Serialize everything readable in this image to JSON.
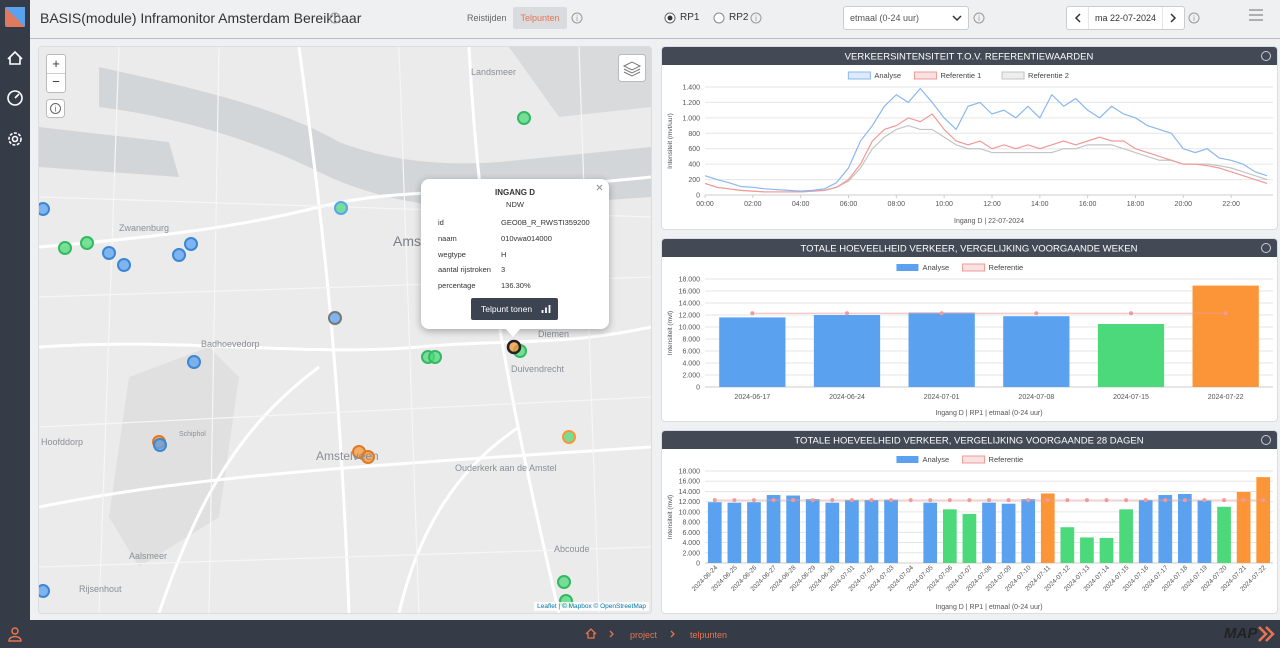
{
  "header": {
    "title": "BASIS(module) Inframonitor Amsterdam Bereikbaar",
    "tabs": [
      "Reistijden",
      "Telpunten"
    ],
    "options": [
      "RP1",
      "RP2"
    ],
    "period": "etmaal (0-24 uur)",
    "date": "ma 22-07-2024"
  },
  "map": {
    "controls": [
      "+",
      "−"
    ],
    "places": [
      "Landsmeer",
      "Zwanenburg",
      "Badhoevedorp",
      "Hoofddorp",
      "Amsterdam",
      "Diemen",
      "Duivendrecht",
      "Amstelveen",
      "Ouderkerk aan de Amstel",
      "Abcoude",
      "Aalsmeer",
      "Rijsenhout",
      "Schiphol"
    ],
    "popup": {
      "title": "INGANG D",
      "source": "NDW",
      "rows": [
        [
          "id",
          "GEO0B_R_RWSTI359200"
        ],
        [
          "naam",
          "010vwa014000"
        ],
        [
          "wegtype",
          "H"
        ],
        [
          "aantal rijstroken",
          "3"
        ],
        [
          "percentage",
          "136.30%"
        ]
      ],
      "button": "Telpunt tonen"
    },
    "attribution": "Leaflet | © Mapbox © OpenStreetMap"
  },
  "chart_data": [
    {
      "type": "line",
      "title": "VERKEERSINTENSITEIT T.O.V. REFERENTIEWAARDEN",
      "y_label": "Intensiteit (mvt/uur)",
      "x_label": "Ingang D | 22-07-2024",
      "x": [
        0,
        0.5,
        1,
        1.5,
        2,
        2.5,
        3,
        3.5,
        4,
        4.5,
        5,
        5.5,
        6,
        6.5,
        7,
        7.5,
        8,
        8.5,
        9,
        9.5,
        10,
        10.5,
        11,
        11.5,
        12,
        12.5,
        13,
        13.5,
        14,
        14.5,
        15,
        15.5,
        16,
        16.5,
        17,
        17.5,
        18,
        18.5,
        19,
        19.5,
        20,
        20.5,
        21,
        21.5,
        22,
        22.5,
        23,
        23.5
      ],
      "series": [
        {
          "name": "Analyse",
          "color": "#8ab8f0",
          "values": [
            250,
            200,
            160,
            110,
            100,
            80,
            70,
            60,
            50,
            60,
            80,
            160,
            350,
            700,
            900,
            1150,
            1300,
            1200,
            1380,
            1200,
            1000,
            850,
            1150,
            1200,
            1050,
            1100,
            1000,
            1150,
            1000,
            1300,
            1150,
            1250,
            1100,
            1000,
            1150,
            1050,
            1000,
            900,
            850,
            800,
            600,
            550,
            600,
            480,
            450,
            400,
            300,
            250
          ]
        },
        {
          "name": "Referentie 1",
          "color": "#f09a9a",
          "values": [
            150,
            100,
            80,
            60,
            50,
            40,
            40,
            40,
            40,
            50,
            60,
            100,
            200,
            400,
            700,
            850,
            900,
            1000,
            950,
            1050,
            850,
            700,
            650,
            700,
            600,
            650,
            600,
            650,
            600,
            650,
            700,
            650,
            700,
            750,
            700,
            700,
            600,
            550,
            500,
            450,
            400,
            400,
            380,
            350,
            300,
            250,
            200,
            150
          ]
        },
        {
          "name": "Referentie 2",
          "color": "#c4c4c4",
          "values": [
            150,
            100,
            80,
            60,
            50,
            40,
            40,
            40,
            40,
            50,
            60,
            100,
            180,
            350,
            600,
            750,
            850,
            900,
            850,
            850,
            750,
            650,
            600,
            600,
            550,
            550,
            550,
            550,
            550,
            550,
            600,
            600,
            650,
            650,
            650,
            600,
            550,
            500,
            450,
            450,
            400,
            400,
            400,
            380,
            350,
            300,
            250,
            200
          ]
        }
      ],
      "xlim": [
        0,
        23.75
      ],
      "xticks": [
        {
          "value": 0,
          "label": "00:00"
        },
        {
          "value": 2,
          "label": "02:00"
        },
        {
          "value": 4,
          "label": "04:00"
        },
        {
          "value": 6,
          "label": "06:00"
        },
        {
          "value": 8,
          "label": "08:00"
        },
        {
          "value": 10,
          "label": "10:00"
        },
        {
          "value": 12,
          "label": "12:00"
        },
        {
          "value": 14,
          "label": "14:00"
        },
        {
          "value": 16,
          "label": "16:00"
        },
        {
          "value": 18,
          "label": "18:00"
        },
        {
          "value": 20,
          "label": "20:00"
        },
        {
          "value": 22,
          "label": "22:00"
        }
      ],
      "ylim": [
        0,
        1400
      ],
      "yticks": [
        0,
        200,
        400,
        600,
        800,
        {
          "value": 1000,
          "label": "1.000"
        },
        {
          "value": 1200,
          "label": "1.200"
        },
        {
          "value": 1400,
          "label": "1.400"
        }
      ],
      "grid": true
    },
    {
      "type": "bar",
      "title": "TOTALE HOEVEELHEID VERKEER, VERGELIJKING VOORGAANDE WEKEN",
      "y_label": "Intensiteit (mvt)",
      "x_label": "Ingang D | RP1 | etmaal (0-24 uur)",
      "categories": [
        "2024-06-17",
        "2024-06-24",
        "2024-07-01",
        "2024-07-08",
        "2024-07-15",
        "2024-07-22"
      ],
      "series": [
        {
          "name": "Analyse",
          "color": "#5aa2f0",
          "values": [
            11600,
            12000,
            12400,
            11800,
            10500,
            16900
          ],
          "colors": [
            "#5aa2f0",
            "#5aa2f0",
            "#5aa2f0",
            "#5aa2f0",
            "#4cd97b",
            "#fb9538"
          ]
        },
        {
          "name": "Referentie",
          "color": "#f09a9a",
          "values": [
            12300,
            12300,
            12300,
            12300,
            12300,
            12300
          ]
        }
      ],
      "ylim": [
        0,
        18000
      ],
      "yticks": [
        0,
        {
          "value": 2000,
          "label": "2.000"
        },
        {
          "value": 4000,
          "label": "4.000"
        },
        {
          "value": 6000,
          "label": "6.000"
        },
        {
          "value": 8000,
          "label": "8.000"
        },
        {
          "value": 10000,
          "label": "10.000"
        },
        {
          "value": 12000,
          "label": "12.000"
        },
        {
          "value": 14000,
          "label": "14.000"
        },
        {
          "value": 16000,
          "label": "16.000"
        },
        {
          "value": 18000,
          "label": "18.000"
        }
      ],
      "grid": true
    },
    {
      "type": "bar",
      "title": "TOTALE HOEVEELHEID VERKEER, VERGELIJKING VOORGAANDE 28 DAGEN",
      "y_label": "Intensiteit (mvt)",
      "x_label": "Ingang D | RP1 | etmaal (0-24 uur)",
      "categories": [
        "2024-06-24",
        "2024-06-25",
        "2024-06-26",
        "2024-06-27",
        "2024-06-28",
        "2024-06-29",
        "2024-06-30",
        "2024-07-01",
        "2024-07-02",
        "2024-07-03",
        "2024-07-04",
        "2024-07-05",
        "2024-07-06",
        "2024-07-07",
        "2024-07-08",
        "2024-07-09",
        "2024-07-10",
        "2024-07-11",
        "2024-07-12",
        "2024-07-13",
        "2024-07-14",
        "2024-07-15",
        "2024-07-16",
        "2024-07-17",
        "2024-07-18",
        "2024-07-19",
        "2024-07-20",
        "2024-07-21",
        "2024-07-22"
      ],
      "series": [
        {
          "name": "Analyse",
          "color": "#5aa2f0",
          "values": [
            11900,
            11800,
            11900,
            13300,
            13200,
            12500,
            11800,
            12300,
            12300,
            12400,
            null,
            11800,
            10500,
            9600,
            11800,
            11600,
            12500,
            13600,
            7000,
            5000,
            4900,
            10500,
            12300,
            13300,
            13500,
            12200,
            11000,
            13900,
            16800
          ],
          "colors": [
            "#5aa2f0",
            "#5aa2f0",
            "#5aa2f0",
            "#5aa2f0",
            "#5aa2f0",
            "#5aa2f0",
            "#5aa2f0",
            "#5aa2f0",
            "#5aa2f0",
            "#5aa2f0",
            "#5aa2f0",
            "#5aa2f0",
            "#4cd97b",
            "#4cd97b",
            "#5aa2f0",
            "#5aa2f0",
            "#5aa2f0",
            "#fb9538",
            "#4cd97b",
            "#4cd97b",
            "#4cd97b",
            "#4cd97b",
            "#5aa2f0",
            "#5aa2f0",
            "#5aa2f0",
            "#5aa2f0",
            "#4cd97b",
            "#fb9538",
            "#fb9538"
          ]
        },
        {
          "name": "Referentie",
          "color": "#f09a9a",
          "values": [
            12300,
            12300,
            12300,
            12300,
            12300,
            12300,
            12300,
            12300,
            12300,
            12300,
            12300,
            12300,
            12300,
            12300,
            12300,
            12300,
            12300,
            12300,
            12300,
            12300,
            12300,
            12300,
            12300,
            12300,
            12300,
            12300,
            12300,
            12300,
            12300
          ]
        }
      ],
      "ylim": [
        0,
        18000
      ],
      "yticks": [
        0,
        {
          "value": 2000,
          "label": "2.000"
        },
        {
          "value": 4000,
          "label": "4.000"
        },
        {
          "value": 6000,
          "label": "6.000"
        },
        {
          "value": 8000,
          "label": "8.000"
        },
        {
          "value": 10000,
          "label": "10.000"
        },
        {
          "value": 12000,
          "label": "12.000"
        },
        {
          "value": 14000,
          "label": "14.000"
        },
        {
          "value": 16000,
          "label": "16.000"
        },
        {
          "value": 18000,
          "label": "18.000"
        }
      ],
      "grid": true
    }
  ],
  "footer": {
    "breadcrumb": [
      "project",
      "telpunten"
    ],
    "logo": "MAP"
  }
}
